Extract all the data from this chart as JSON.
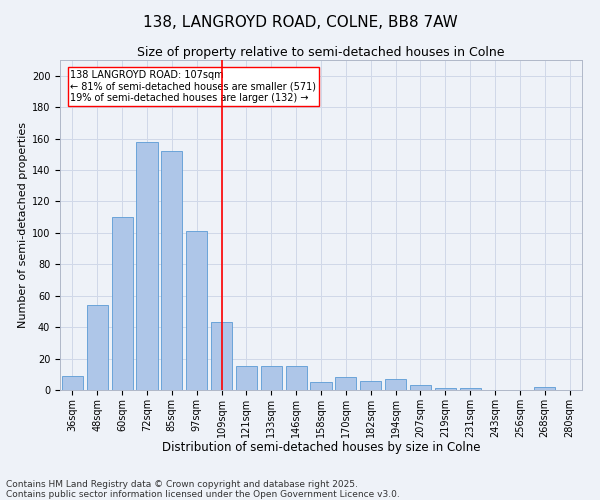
{
  "title": "138, LANGROYD ROAD, COLNE, BB8 7AW",
  "subtitle": "Size of property relative to semi-detached houses in Colne",
  "xlabel": "Distribution of semi-detached houses by size in Colne",
  "ylabel": "Number of semi-detached properties",
  "bar_color": "#aec6e8",
  "bar_edge_color": "#5b9bd5",
  "grid_color": "#d0d8e8",
  "background_color": "#eef2f8",
  "vline_color": "red",
  "annotation_line1": "138 LANGROYD ROAD: 107sqm",
  "annotation_line2": "← 81% of semi-detached houses are smaller (571)",
  "annotation_line3": "19% of semi-detached houses are larger (132) →",
  "categories": [
    "36sqm",
    "48sqm",
    "60sqm",
    "72sqm",
    "85sqm",
    "97sqm",
    "109sqm",
    "121sqm",
    "133sqm",
    "146sqm",
    "158sqm",
    "170sqm",
    "182sqm",
    "194sqm",
    "207sqm",
    "219sqm",
    "231sqm",
    "243sqm",
    "256sqm",
    "268sqm",
    "280sqm"
  ],
  "values": [
    9,
    54,
    110,
    158,
    152,
    101,
    43,
    15,
    15,
    15,
    5,
    8,
    6,
    7,
    3,
    1,
    1,
    0,
    0,
    2,
    0
  ],
  "ylim": [
    0,
    210
  ],
  "yticks": [
    0,
    20,
    40,
    60,
    80,
    100,
    120,
    140,
    160,
    180,
    200
  ],
  "footer": "Contains HM Land Registry data © Crown copyright and database right 2025.\nContains public sector information licensed under the Open Government Licence v3.0.",
  "title_fontsize": 11,
  "subtitle_fontsize": 9,
  "xlabel_fontsize": 8.5,
  "ylabel_fontsize": 8,
  "tick_fontsize": 7,
  "footer_fontsize": 6.5
}
